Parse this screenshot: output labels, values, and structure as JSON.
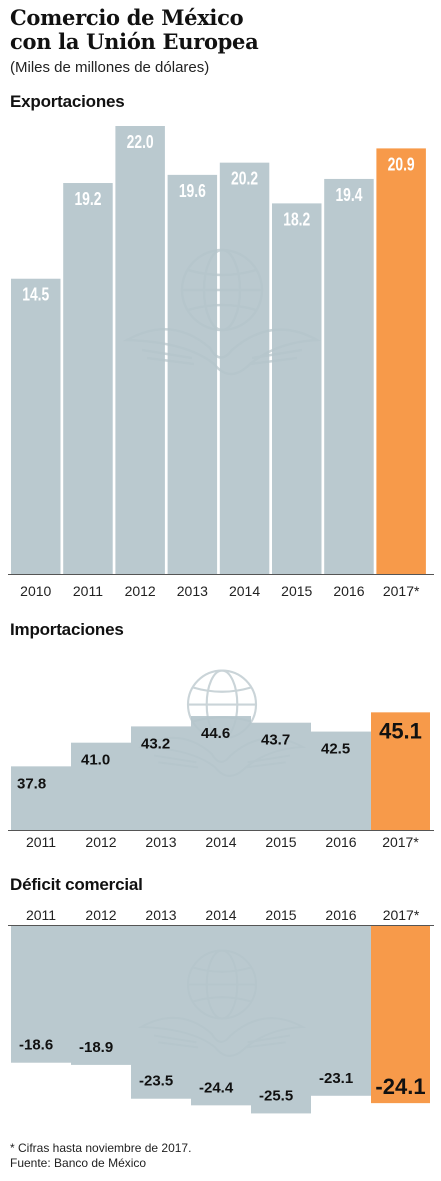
{
  "header": {
    "title_line1": "Comercio de México",
    "title_line2": "con la Unión Europea",
    "subtitle": "(Miles de millones de dólares)"
  },
  "colors": {
    "bar": "#b4c4cb",
    "highlight": "#f79a4a",
    "watermark": "#9fb2ba"
  },
  "chart_data": [
    {
      "type": "bar",
      "title": "Exportaciones",
      "categories": [
        "2010",
        "2011",
        "2012",
        "2013",
        "2014",
        "2015",
        "2016",
        "2017*"
      ],
      "values": [
        14.5,
        19.2,
        22.0,
        19.6,
        20.2,
        18.2,
        19.4,
        20.9
      ],
      "labels": [
        "14.5",
        "19.2",
        "22.0",
        "19.6",
        "20.2",
        "18.2",
        "19.4",
        "20.9"
      ],
      "highlight_index": 7,
      "ylim": [
        0,
        22.0
      ],
      "grid": false
    },
    {
      "type": "bar",
      "title": "Importaciones",
      "categories": [
        "2011",
        "2012",
        "2013",
        "2014",
        "2015",
        "2016",
        "2017*"
      ],
      "values": [
        37.8,
        41.0,
        43.2,
        44.6,
        43.7,
        42.5,
        45.1
      ],
      "labels": [
        "37.8",
        "41.0",
        "43.2",
        "44.6",
        "43.7",
        "42.5",
        "45.1"
      ],
      "highlight_index": 6,
      "ylim": [
        0,
        45.1
      ],
      "grid": false
    },
    {
      "type": "bar",
      "title": "Déficit comercial",
      "categories": [
        "2011",
        "2012",
        "2013",
        "2014",
        "2015",
        "2016",
        "2017*"
      ],
      "values": [
        -18.6,
        -18.9,
        -23.5,
        -24.4,
        -25.5,
        -23.1,
        -24.1
      ],
      "labels": [
        "-18.6",
        "-18.9",
        "-23.5",
        "-24.4",
        "-25.5",
        "-23.1",
        "-24.1"
      ],
      "highlight_index": 6,
      "ylim": [
        -25.5,
        0
      ],
      "grid": false
    }
  ],
  "footer": {
    "note": "* Cifras hasta noviembre de 2017.",
    "source": "Fuente: Banco de México"
  }
}
